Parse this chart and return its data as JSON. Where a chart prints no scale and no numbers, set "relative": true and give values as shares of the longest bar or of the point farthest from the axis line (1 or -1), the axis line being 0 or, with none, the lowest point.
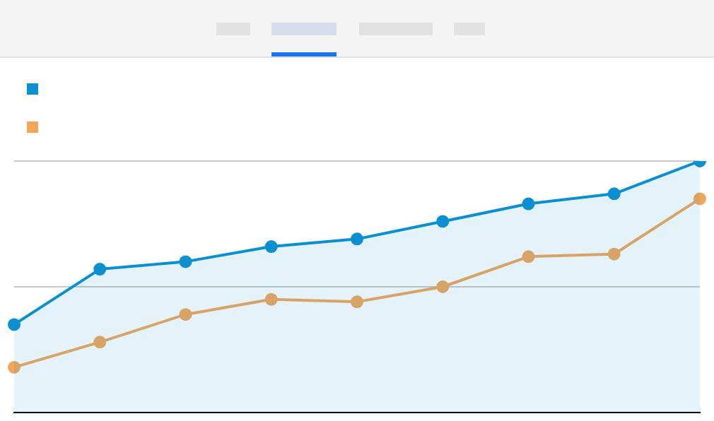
{
  "chart_data": {
    "type": "line",
    "relative": true,
    "categories": [
      null,
      null,
      null,
      null,
      null,
      null,
      null,
      null,
      null
    ],
    "series": [
      {
        "type": "area",
        "color": "#0a8fd0",
        "values": [
          0.35,
          0.57,
          0.6,
          0.66,
          0.69,
          0.76,
          0.83,
          0.87,
          1
        ]
      },
      {
        "color": "#f2a65a",
        "values": [
          0.18,
          0.28,
          0.39,
          0.45,
          0.44,
          0.5,
          0.62,
          0.63,
          0.85
        ]
      }
    ],
    "ref_lines": [
      {
        "axis": "y",
        "value": 0.5,
        "color": "#c8c8c8"
      },
      {
        "axis": "y",
        "value": 1,
        "color": "#c8c8c8"
      }
    ],
    "marker": "circle"
  }
}
